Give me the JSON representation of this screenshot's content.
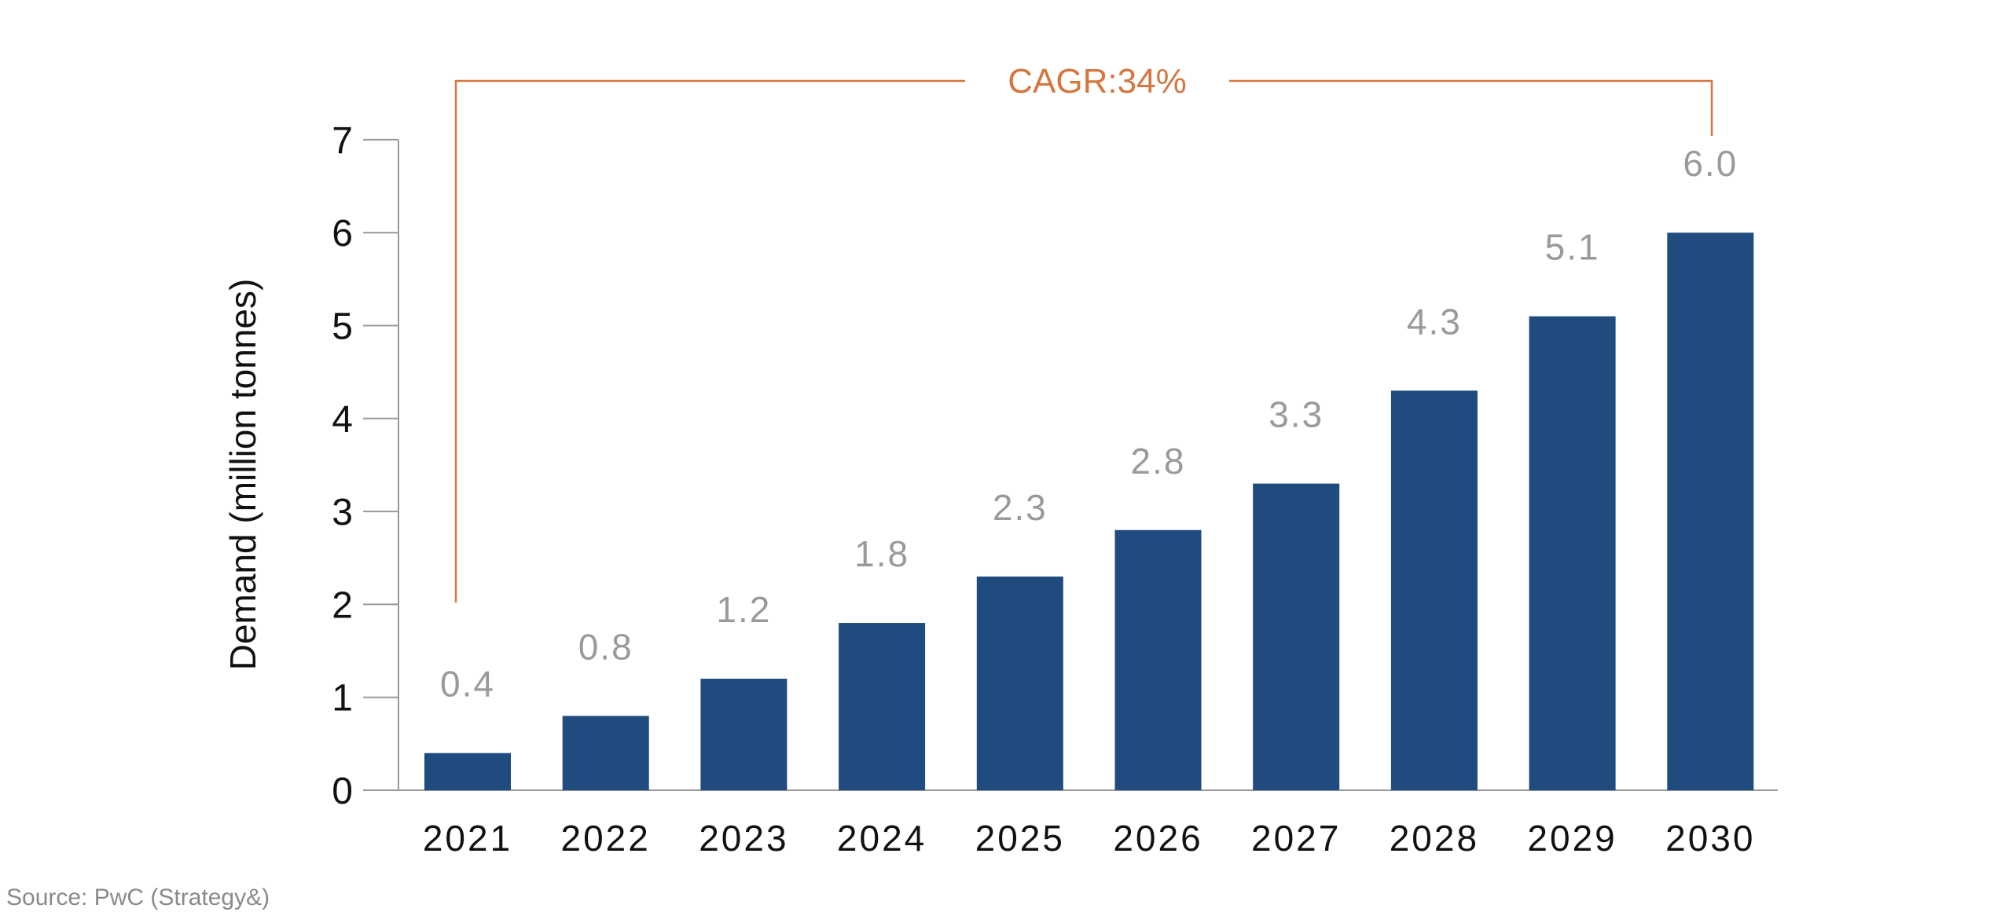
{
  "chart_data": {
    "type": "bar",
    "title": "",
    "xlabel": "",
    "ylabel": "Demand (million tonnes)",
    "ylim": [
      0,
      7
    ],
    "yticks": [
      "0",
      "1",
      "2",
      "3",
      "4",
      "5",
      "6",
      "7"
    ],
    "categories": [
      "2021",
      "2022",
      "2023",
      "2024",
      "2025",
      "2026",
      "2027",
      "2028",
      "2029",
      "2030"
    ],
    "values": [
      0.4,
      0.8,
      1.2,
      1.8,
      2.3,
      2.8,
      3.3,
      4.3,
      5.1,
      6.0
    ],
    "data_labels": [
      "0.4",
      "0.8",
      "1.2",
      "1.8",
      "2.3",
      "2.8",
      "3.3",
      "4.3",
      "5.1",
      "6.0"
    ],
    "annotation": "CAGR:34%",
    "grid": false,
    "colors": {
      "bar": "#1f4b7e",
      "annotation": "#d4763e",
      "data_label": "#9a9a9a",
      "axis": "#999999"
    }
  },
  "source": "Source: PwC (Strategy&)"
}
